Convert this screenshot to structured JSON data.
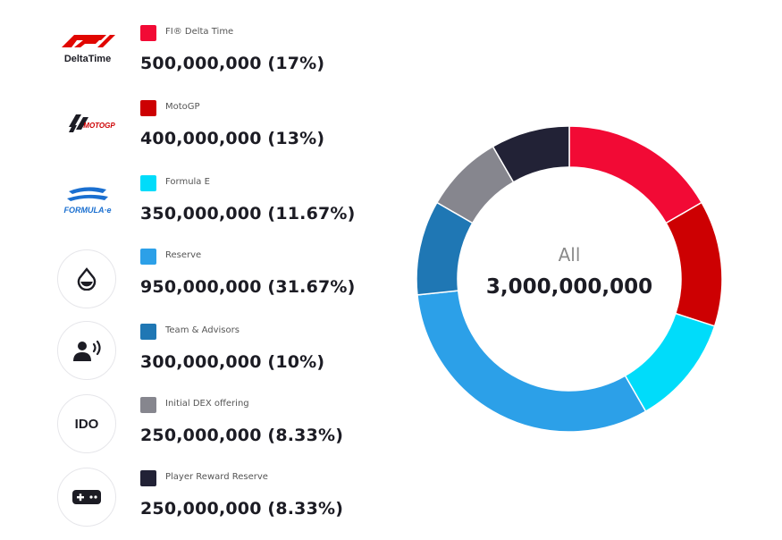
{
  "chart_data": {
    "type": "pie",
    "center_label": "All",
    "center_value": "3,000,000,000",
    "slices": [
      {
        "name": "FI® Delta Time",
        "value_text": "500,000,000 (17%)",
        "value": 500000000,
        "color": "#f20a35"
      },
      {
        "name": "MotoGP",
        "value_text": "400,000,000 (13%)",
        "value": 400000000,
        "color": "#cd0002"
      },
      {
        "name": "Formula E",
        "value_text": "350,000,000 (11.67%)",
        "value": 350000000,
        "color": "#00dcfa"
      },
      {
        "name": "Reserve",
        "value_text": "950,000,000 (31.67%)",
        "value": 950000000,
        "color": "#2ca0e8"
      },
      {
        "name": "Team & Advisors",
        "value_text": "300,000,000 (10%)",
        "value": 300000000,
        "color": "#1f77b4"
      },
      {
        "name": "Initial DEX offering",
        "value_text": "250,000,000 (8.33%)",
        "value": 250000000,
        "color": "#86868e"
      },
      {
        "name": "Player Reward Reserve",
        "value_text": "250,000,000 (8.33%)",
        "value": 250000000,
        "color": "#222236"
      }
    ]
  },
  "logos": {
    "deltatime": "DeltaTime",
    "motogp": "MOTOGP",
    "formula_e": "FORMULA·e"
  },
  "icons": {
    "ido": "IDO"
  }
}
